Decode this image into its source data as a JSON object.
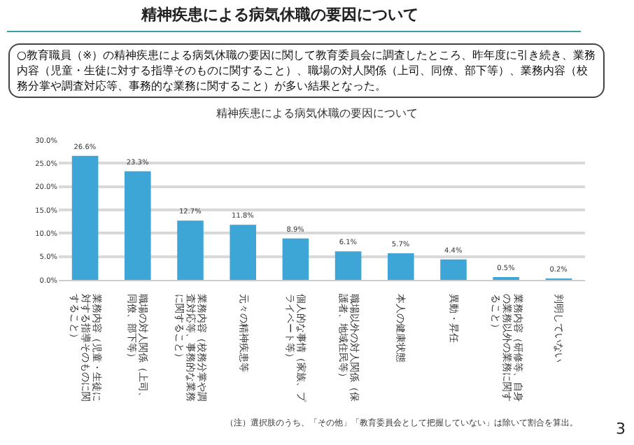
{
  "chart_data": {
    "type": "bar",
    "title": "精神疾患による病気休職の要因について",
    "subtitle": "精神疾患による病気休職の要因について",
    "annotations": [
      "○教育職員（※）の精神疾患による病気休職の要因に関して教育委員会に調査したところ、昨年度に引き続き、業務内容（児童・生徒に対する指導そのものに関すること）、職場の対人関係（上司、同僚、部下等）、業務内容（校務分掌や調査対応等、事務的な業務に関すること）が多い結果となった。",
      "（注）選択肢のうち、「その他」「教育委員会として把握していない」は除いて割合を算出。",
      "3"
    ],
    "categories": [
      "業務内容（児童・生徒に対する指導そのものに関すること）",
      "職場の対人関係（上司、同僚、部下等）",
      "業務内容（校務分掌や調査対応等、事務的な業務に関すること）",
      "元々の精神疾患等",
      "個人的な事情（家族、プライベート等）",
      "職場以外の対人関係（保護者、地域住民等）",
      "本人の健康状態",
      "異動・昇任",
      "業務内容（研修等、自身の業務以外の業務に関すること）",
      "判明していない"
    ],
    "values": [
      26.6,
      23.3,
      12.7,
      11.8,
      8.9,
      6.1,
      5.7,
      4.4,
      0.5,
      0.2
    ],
    "value_labels": [
      "26.6%",
      "23.3%",
      "12.7%",
      "11.8%",
      "8.9%",
      "6.1%",
      "5.7%",
      "4.4%",
      "0.5%",
      "0.2%"
    ],
    "color": "#3ea6d6",
    "ylim": [
      0,
      30
    ],
    "yticks": [
      {
        "value": 0,
        "label": "0.0%"
      },
      {
        "value": 5,
        "label": "5.0%"
      },
      {
        "value": 10,
        "label": "10.0%"
      },
      {
        "value": 15,
        "label": "15.0%"
      },
      {
        "value": 20,
        "label": "20.0%"
      },
      {
        "value": 25,
        "label": "25.0%"
      },
      {
        "value": 30,
        "label": "30.0%"
      }
    ],
    "grid": "y"
  }
}
